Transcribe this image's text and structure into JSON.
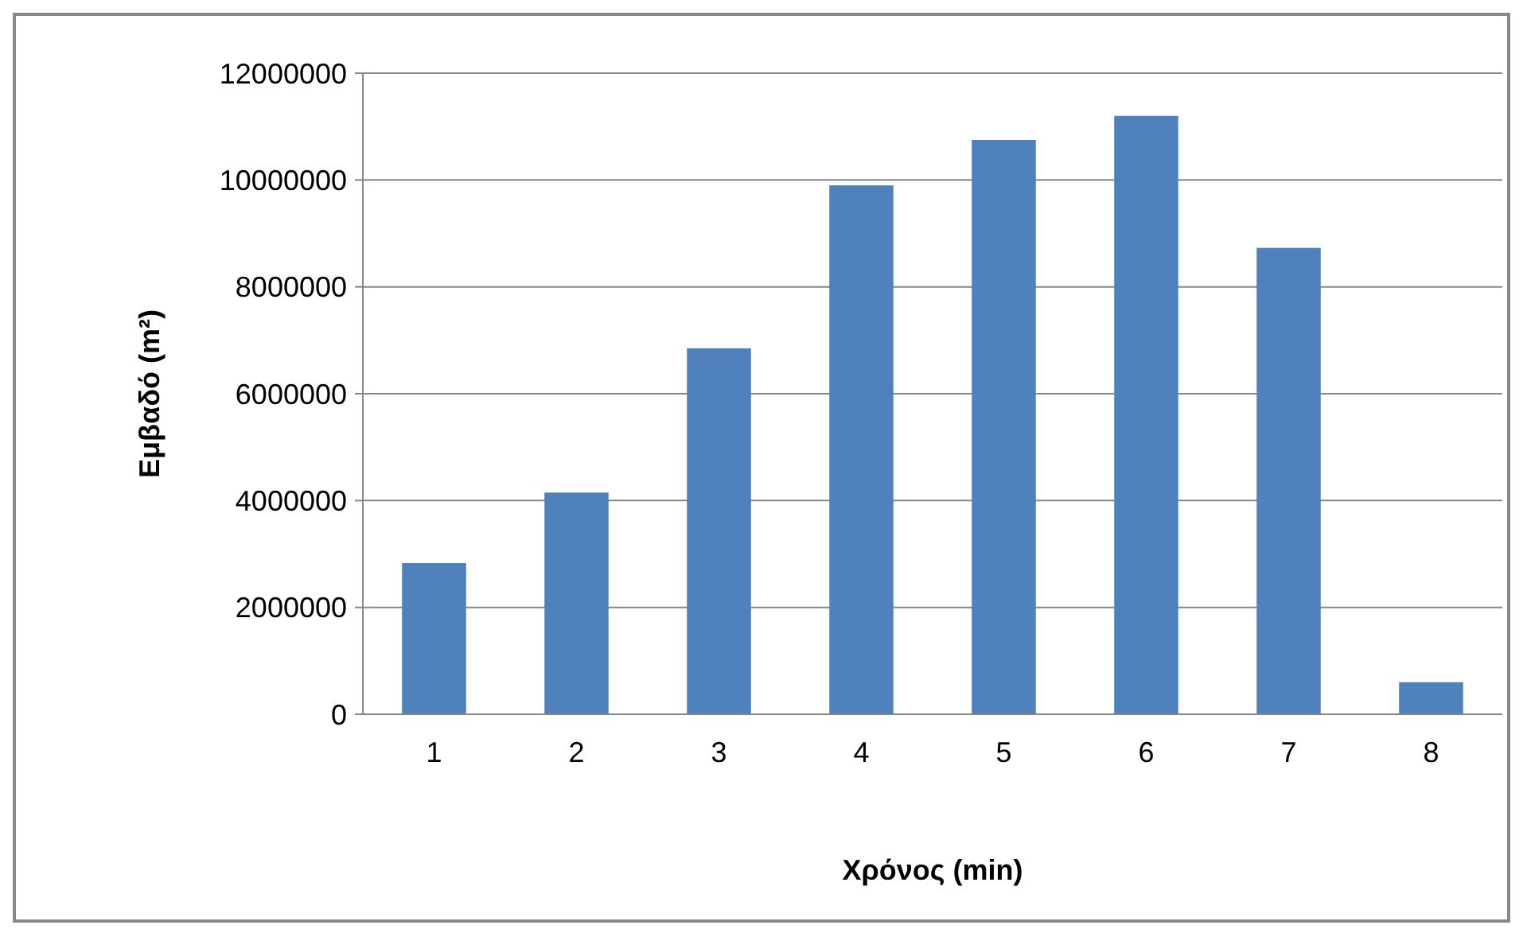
{
  "chart_data": {
    "type": "bar",
    "xlabel": "Χρόνος (min)",
    "ylabel": "Εμβαδό (m²)",
    "categories": [
      "1",
      "2",
      "3",
      "4",
      "5",
      "6",
      "7",
      "8"
    ],
    "values": [
      2830000,
      4150000,
      6850000,
      9900000,
      10750000,
      11200000,
      8730000,
      600000
    ],
    "color": "#4f81bd",
    "ylim": [
      0,
      12000000
    ],
    "yticks": [
      0,
      2000000,
      4000000,
      6000000,
      8000000,
      10000000,
      12000000
    ],
    "grid": "y"
  }
}
